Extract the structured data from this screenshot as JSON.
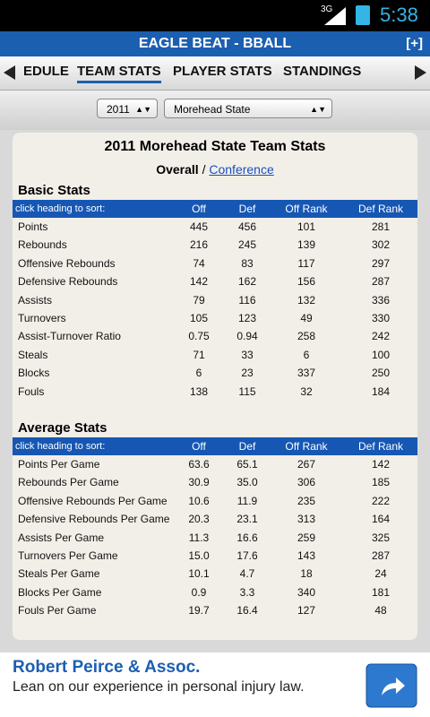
{
  "status_bar": {
    "network": "3G",
    "time": "5:38"
  },
  "app_bar": {
    "title": "EAGLE BEAT - BBALL",
    "action": "[+]"
  },
  "tabs": [
    "EDULE",
    "TEAM STATS",
    "PLAYER STATS",
    "STANDINGS"
  ],
  "filters": {
    "year": "2011",
    "team": "Morehead State"
  },
  "page": {
    "title": "2011 Morehead State Team Stats",
    "view_active": "Overall",
    "view_separator": "/",
    "view_link": "Conference"
  },
  "sections": [
    {
      "title": "Basic Stats",
      "header": [
        "click heading to sort:",
        "Off",
        "Def",
        "Off Rank",
        "Def Rank"
      ],
      "rows": [
        [
          "Points",
          "445",
          "456",
          "101",
          "281"
        ],
        [
          "Rebounds",
          "216",
          "245",
          "139",
          "302"
        ],
        [
          "Offensive Rebounds",
          "74",
          "83",
          "117",
          "297"
        ],
        [
          "Defensive Rebounds",
          "142",
          "162",
          "156",
          "287"
        ],
        [
          "Assists",
          "79",
          "116",
          "132",
          "336"
        ],
        [
          "Turnovers",
          "105",
          "123",
          "49",
          "330"
        ],
        [
          "Assist-Turnover Ratio",
          "0.75",
          "0.94",
          "258",
          "242"
        ],
        [
          "Steals",
          "71",
          "33",
          "6",
          "100"
        ],
        [
          "Blocks",
          "6",
          "23",
          "337",
          "250"
        ],
        [
          "Fouls",
          "138",
          "115",
          "32",
          "184"
        ]
      ]
    },
    {
      "title": "Average Stats",
      "header": [
        "click heading to sort:",
        "Off",
        "Def",
        "Off Rank",
        "Def Rank"
      ],
      "rows": [
        [
          "Points Per Game",
          "63.6",
          "65.1",
          "267",
          "142"
        ],
        [
          "Rebounds Per Game",
          "30.9",
          "35.0",
          "306",
          "185"
        ],
        [
          "Offensive Rebounds Per Game",
          "10.6",
          "11.9",
          "235",
          "222"
        ],
        [
          "Defensive Rebounds Per Game",
          "20.3",
          "23.1",
          "313",
          "164"
        ],
        [
          "Assists Per Game",
          "11.3",
          "16.6",
          "259",
          "325"
        ],
        [
          "Turnovers Per Game",
          "15.0",
          "17.6",
          "143",
          "287"
        ],
        [
          "Steals Per Game",
          "10.1",
          "4.7",
          "18",
          "24"
        ],
        [
          "Blocks Per Game",
          "0.9",
          "3.3",
          "340",
          "181"
        ],
        [
          "Fouls Per Game",
          "19.7",
          "16.4",
          "127",
          "48"
        ]
      ]
    }
  ],
  "ad": {
    "title": "Robert Peirce & Assoc.",
    "text": "Lean on our experience in personal injury law."
  }
}
